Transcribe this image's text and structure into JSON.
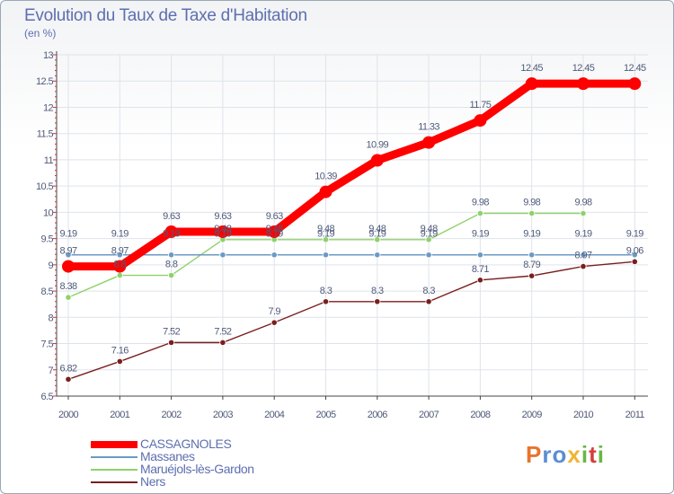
{
  "title": "Evolution du Taux de Taxe d'Habitation",
  "unit": "(en %)",
  "logo": {
    "chars": [
      "P",
      "r",
      "o",
      "x",
      "i",
      "t",
      "i"
    ],
    "colors": [
      "#e8742c",
      "#5a8fd0",
      "#5a8fd0",
      "#f0b431",
      "#66b845",
      "#d63d3d",
      "#66b845"
    ]
  },
  "chart_data": {
    "type": "line",
    "x": [
      "2000",
      "2001",
      "2002",
      "2003",
      "2004",
      "2005",
      "2006",
      "2007",
      "2008",
      "2009",
      "2010",
      "2011"
    ],
    "ylim": [
      6.5,
      13
    ],
    "yticks": [
      6.5,
      7,
      7.5,
      8,
      8.5,
      9,
      9.5,
      10,
      10.5,
      11,
      11.5,
      12,
      12.5,
      13
    ],
    "ytick_labels": [
      "6.5",
      "7",
      "7.5",
      "8",
      "8.5",
      "9",
      "9.5",
      "10",
      "10.5",
      "11",
      "11.5",
      "12",
      "12.5",
      "13"
    ],
    "grid": true,
    "legend_position": "bottom-left",
    "series": [
      {
        "name": "CASSAGNOLES",
        "color": "#ff0000",
        "values": [
          8.97,
          8.97,
          9.63,
          9.63,
          9.63,
          10.39,
          10.99,
          11.33,
          11.75,
          12.45,
          12.45,
          12.45
        ],
        "labels": [
          "8.97",
          "8.97",
          "9.63",
          "9.63",
          "9.63",
          "10.39",
          "10.99",
          "11.33",
          "11.75",
          "12.45",
          "12.45",
          "12.45"
        ]
      },
      {
        "name": "Massanes",
        "color": "#6b9ac4",
        "values": [
          9.19,
          9.19,
          9.19,
          9.19,
          9.19,
          9.19,
          9.19,
          9.19,
          9.19,
          9.19,
          9.19,
          9.19
        ],
        "labels": [
          "9.19",
          "9.19",
          "9.19",
          "9.19",
          "9.19",
          "9.19",
          "9.19",
          "9.19",
          "9.19",
          "9.19",
          "9.19",
          "9.19"
        ]
      },
      {
        "name": "Maruéjols-lès-Gardon",
        "color": "#8fd16a",
        "values": [
          8.38,
          8.8,
          8.8,
          9.48,
          9.48,
          9.48,
          9.48,
          9.48,
          9.98,
          9.98,
          9.98,
          null
        ],
        "labels": [
          "8.38",
          "8.8",
          "8.8",
          "9.48",
          "9.48",
          "9.48",
          "9.48",
          "9.48",
          "9.98",
          "9.98",
          "9.98",
          null
        ]
      },
      {
        "name": "Ners",
        "color": "#7a1e1e",
        "values": [
          6.82,
          7.16,
          7.52,
          7.52,
          7.9,
          8.3,
          8.3,
          8.3,
          8.71,
          8.79,
          8.97,
          9.06
        ],
        "labels": [
          "6.82",
          "7.16",
          "7.52",
          "7.52",
          "7.9",
          "8.3",
          "8.3",
          "8.3",
          "8.71",
          "8.79",
          "8.97",
          "9.06"
        ]
      }
    ]
  }
}
